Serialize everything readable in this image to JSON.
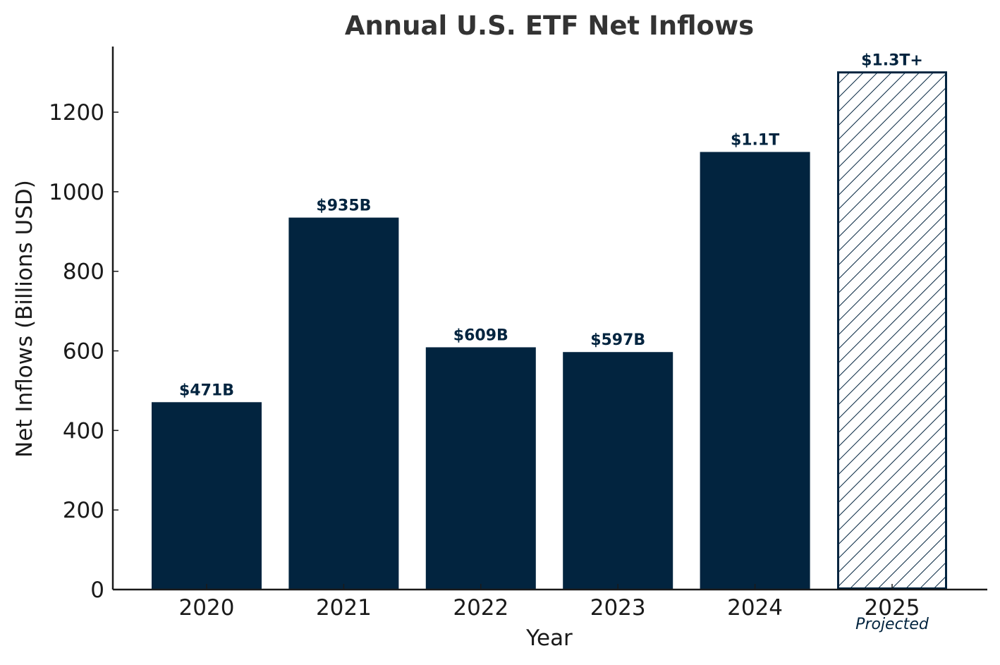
{
  "chart_data": {
    "type": "bar",
    "title": "Annual U.S. ETF Net Inflows",
    "xlabel": "Year",
    "ylabel": "Net Inflows (Billions USD)",
    "categories": [
      "2020",
      "2021",
      "2022",
      "2023",
      "2024",
      "2025"
    ],
    "values": [
      471,
      935,
      609,
      597,
      1100,
      1300
    ],
    "data_labels": [
      "$471B",
      "$935B",
      "$609B",
      "$597B",
      "$1.1T",
      "$1.3T+"
    ],
    "projected": [
      false,
      false,
      false,
      false,
      false,
      true
    ],
    "projected_note": "Projected",
    "ylim": [
      0,
      1365
    ],
    "yticks": [
      0,
      200,
      400,
      600,
      800,
      1000,
      1200
    ],
    "grid": false,
    "legend": "none",
    "colors": {
      "bar": "#02243f",
      "hatch": "#02243f",
      "axis": "#1a1a1a"
    }
  }
}
